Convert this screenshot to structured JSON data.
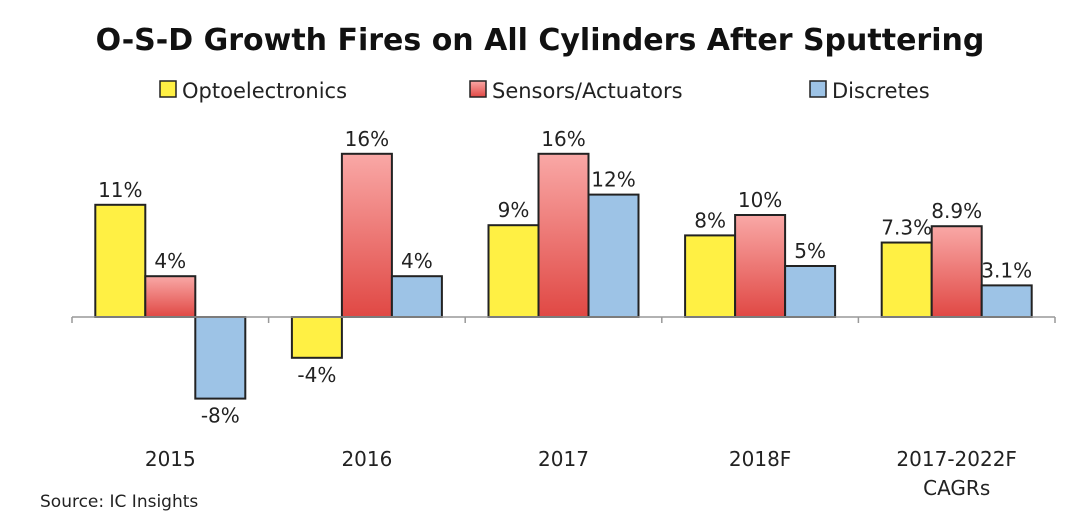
{
  "chart_data": {
    "type": "bar",
    "title": "O-S-D Growth Fires on All Cylinders After Sputtering",
    "categories": [
      [
        "2015"
      ],
      [
        "2016"
      ],
      [
        "2017"
      ],
      [
        "2018F"
      ],
      [
        "2017-2022F",
        "CAGRs"
      ]
    ],
    "series": [
      {
        "name": "Optoelectronics",
        "color": "#fff044",
        "values": [
          11,
          -4,
          9,
          8,
          7.3
        ],
        "labels": [
          "11%",
          "-4%",
          "9%",
          "8%",
          "7.3%"
        ]
      },
      {
        "name": "Sensors/Actuators",
        "color": "#e8504c",
        "values": [
          4,
          16,
          16,
          10,
          8.9
        ],
        "labels": [
          "4%",
          "16%",
          "16%",
          "10%",
          "8.9%"
        ]
      },
      {
        "name": "Discretes",
        "color": "#9dc3e6",
        "values": [
          -8,
          4,
          12,
          5,
          3.1
        ],
        "labels": [
          "-8%",
          "4%",
          "12%",
          "5%",
          "3.1%"
        ]
      }
    ],
    "ylabel": "",
    "xlabel": "",
    "ylim": [
      -12,
      18
    ],
    "grid": false,
    "legend": "top",
    "source": "Source: IC Insights"
  }
}
